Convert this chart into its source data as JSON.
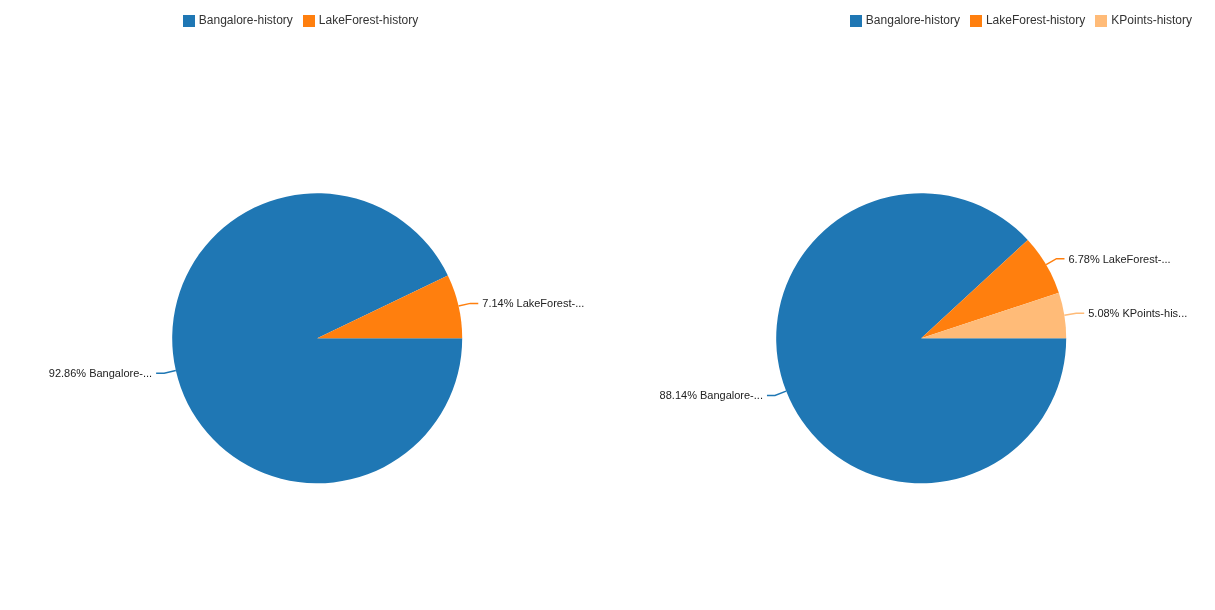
{
  "chart_data": [
    {
      "type": "pie",
      "categories": [
        "Bangalore-history",
        "LakeForest-history"
      ],
      "values": [
        92.86,
        7.14
      ],
      "colors": [
        "#1f77b4",
        "#ff7f0e"
      ],
      "value_labels": [
        "92.86% Bangalore-...",
        "7.14% LakeForest-..."
      ],
      "legend": "top"
    },
    {
      "type": "pie",
      "categories": [
        "Bangalore-history",
        "LakeForest-history",
        "KPoints-history"
      ],
      "values": [
        88.14,
        6.78,
        5.08
      ],
      "colors": [
        "#1f77b4",
        "#ff7f0e",
        "#ffbb78"
      ],
      "value_labels": [
        "88.14% Bangalore-...",
        "6.78% LakeForest-...",
        "5.08% KPoints-his..."
      ],
      "legend": "top right"
    }
  ]
}
